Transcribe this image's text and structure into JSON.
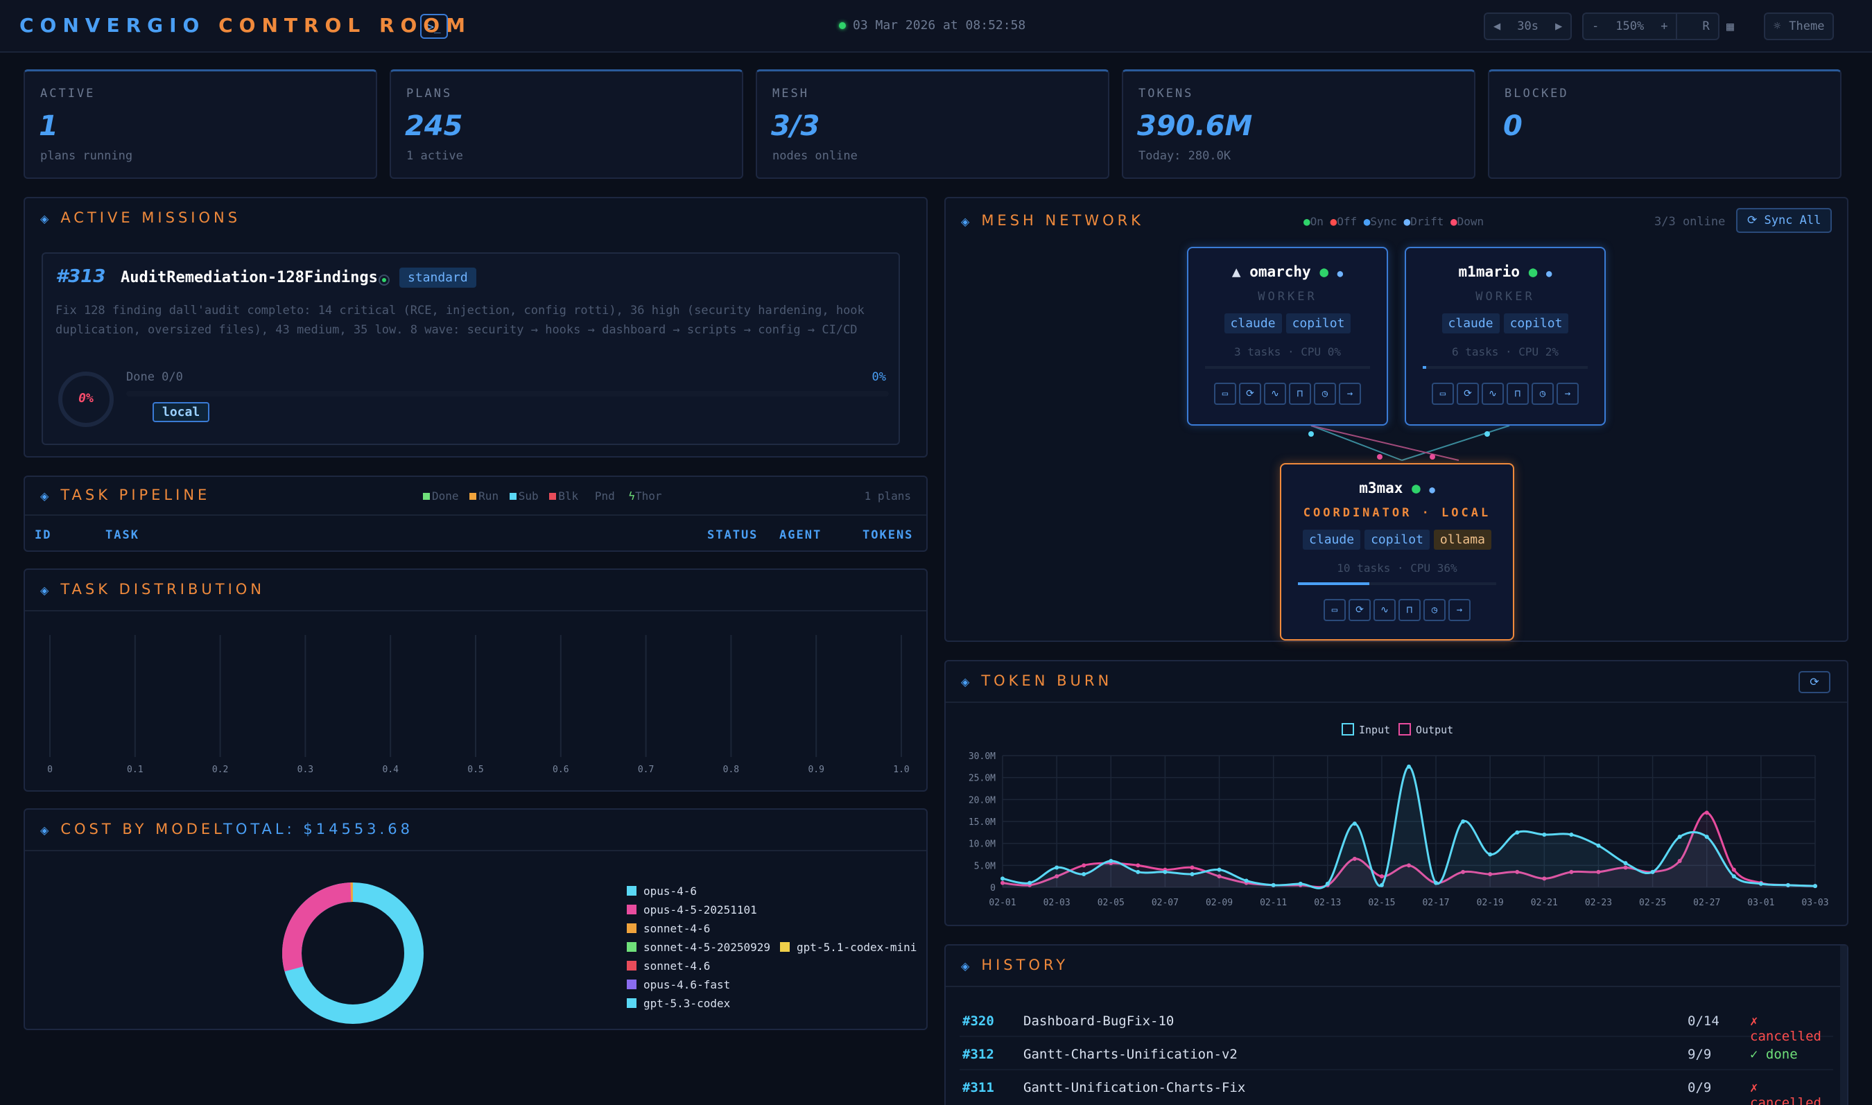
{
  "header": {
    "title_part1": "CONVERGIO",
    "title_part2": "CONTROL ROOM",
    "terminal_icon": "terminal-icon",
    "datetime": "03 Mar 2026 at 08:52:58",
    "refresh_interval": "30s",
    "zoom_minus": "-",
    "zoom_level": "150%",
    "zoom_plus": "+",
    "reset": "R",
    "theme": "Theme"
  },
  "kpis": [
    {
      "label": "ACTIVE",
      "value": "1",
      "sub": "plans running"
    },
    {
      "label": "PLANS",
      "value": "245",
      "sub": "1 active"
    },
    {
      "label": "MESH",
      "value": "3/3",
      "sub": "nodes online"
    },
    {
      "label": "TOKENS",
      "value": "390.6M",
      "sub": "Today: 280.0K"
    },
    {
      "label": "BLOCKED",
      "value": "0",
      "sub": ""
    }
  ],
  "missions": {
    "title": "ACTIVE MISSIONS",
    "item": {
      "id": "#313",
      "name": "AuditRemediation-128Findings",
      "tier": "standard",
      "description": "Fix 128 finding dall'audit completo: 14 critical (RCE, injection, config rotti), 36 high (security hardening, hook duplication, oversized files), 43 medium, 35 low. 8 wave: security → hooks → dashboard → scripts → config → CI/CD",
      "gauge": "0%",
      "done_label": "Done 0/0",
      "done_pct": "0%",
      "progress": 0,
      "host": "local"
    }
  },
  "pipeline": {
    "title": "TASK PIPELINE",
    "legend": [
      "Done",
      "Run",
      "Sub",
      "Blk",
      "Pnd",
      "Thor"
    ],
    "count": "1 plans",
    "columns": {
      "id": "ID",
      "task": "TASK",
      "status": "STATUS",
      "agent": "AGENT",
      "tokens": "TOKENS"
    }
  },
  "distribution": {
    "title": "TASK DISTRIBUTION",
    "ticks": [
      "0",
      "0.1",
      "0.2",
      "0.3",
      "0.4",
      "0.5",
      "0.6",
      "0.7",
      "0.8",
      "0.9",
      "1.0"
    ]
  },
  "cost": {
    "title": "COST BY MODEL",
    "total": "TOTAL: $14553.68",
    "legend": [
      {
        "name": "opus-4-6",
        "color": "#5ad8f5"
      },
      {
        "name": "opus-4-5-20251101",
        "color": "#e84c9e"
      },
      {
        "name": "sonnet-4-6",
        "color": "#f0a33c"
      },
      {
        "name": "sonnet-4-5-20250929",
        "color": "#6fe07a"
      },
      {
        "name": "gpt-5.1-codex-mini",
        "color": "#f0d04a"
      },
      {
        "name": "sonnet-4.6",
        "color": "#e84c5a"
      },
      {
        "name": "opus-4.6-fast",
        "color": "#8a6cf0"
      },
      {
        "name": "gpt-5.3-codex",
        "color": "#5ad8f5"
      }
    ]
  },
  "mesh": {
    "title": "MESH NETWORK",
    "legend": [
      "On",
      "Off",
      "Sync",
      "Drift",
      "Down"
    ],
    "online": "3/3 online",
    "sync_all": "Sync All",
    "nodes": [
      {
        "name": "omarchy",
        "role": "WORKER",
        "chips": [
          "claude",
          "copilot"
        ],
        "stats": "3 tasks · CPU 0%",
        "cpu": 0,
        "os_icon": "linux-icon"
      },
      {
        "name": "m1mario",
        "role": "WORKER",
        "chips": [
          "claude",
          "copilot"
        ],
        "stats": "6 tasks · CPU 2%",
        "cpu": 2,
        "os_icon": "apple-icon"
      },
      {
        "name": "m3max",
        "role": "COORDINATOR · LOCAL",
        "chips": [
          "claude",
          "copilot",
          "ollama"
        ],
        "stats": "10 tasks · CPU 36%",
        "cpu": 36,
        "os_icon": "apple-icon"
      }
    ]
  },
  "token_burn": {
    "title": "TOKEN BURN",
    "legend_input": "Input",
    "legend_output": "Output"
  },
  "chart_data": {
    "type": "area",
    "title": "TOKEN BURN",
    "x": [
      "02-01",
      "02-02",
      "02-03",
      "02-04",
      "02-05",
      "02-06",
      "02-07",
      "02-08",
      "02-09",
      "02-10",
      "02-11",
      "02-12",
      "02-13",
      "02-14",
      "02-15",
      "02-16",
      "02-17",
      "02-18",
      "02-19",
      "02-20",
      "02-21",
      "02-22",
      "02-23",
      "02-24",
      "02-25",
      "02-26",
      "02-27",
      "02-28",
      "03-01",
      "03-02",
      "03-03"
    ],
    "x_ticks": [
      "02-01",
      "02-03",
      "02-05",
      "02-07",
      "02-09",
      "02-11",
      "02-13",
      "02-15",
      "02-17",
      "02-19",
      "02-21",
      "02-23",
      "02-25",
      "02-27",
      "03-01",
      "03-03"
    ],
    "y_ticks": [
      "0",
      "5.0M",
      "10.0M",
      "15.0M",
      "20.0M",
      "25.0M",
      "30.0M"
    ],
    "ylim": [
      0,
      30000000
    ],
    "series": [
      {
        "name": "Input",
        "color": "#5ad8f5",
        "values": [
          2000000,
          1000000,
          4500000,
          3000000,
          6000000,
          3500000,
          3500000,
          3000000,
          4000000,
          1500000,
          500000,
          800000,
          800000,
          14500000,
          500000,
          27500000,
          1000000,
          15000000,
          7500000,
          12500000,
          12000000,
          12000000,
          9500000,
          5500000,
          3500000,
          11500000,
          11500000,
          2500000,
          800000,
          500000,
          300000
        ]
      },
      {
        "name": "Output",
        "color": "#e84c9e",
        "values": [
          1000000,
          500000,
          2500000,
          5000000,
          5500000,
          5000000,
          4000000,
          4500000,
          2500000,
          1000000,
          500000,
          500000,
          500000,
          6500000,
          2500000,
          5000000,
          1000000,
          3500000,
          3000000,
          3500000,
          2000000,
          3500000,
          3500000,
          4500000,
          3500000,
          6000000,
          17000000,
          4000000,
          1000000,
          500000,
          300000
        ]
      }
    ]
  },
  "history": {
    "title": "HISTORY",
    "rows": [
      {
        "id": "#320",
        "name": "Dashboard-BugFix-10",
        "progress": "0/14",
        "status": "✗ cancelled",
        "color": "#ff4d4d"
      },
      {
        "id": "#312",
        "name": "Gantt-Charts-Unification-v2",
        "progress": "9/9",
        "status": "✓ done",
        "color": "#6fe07a"
      },
      {
        "id": "#311",
        "name": "Gantt-Unification-Charts-Fix",
        "progress": "0/9",
        "status": "✗ cancelled",
        "color": "#ff4d4d"
      }
    ]
  }
}
